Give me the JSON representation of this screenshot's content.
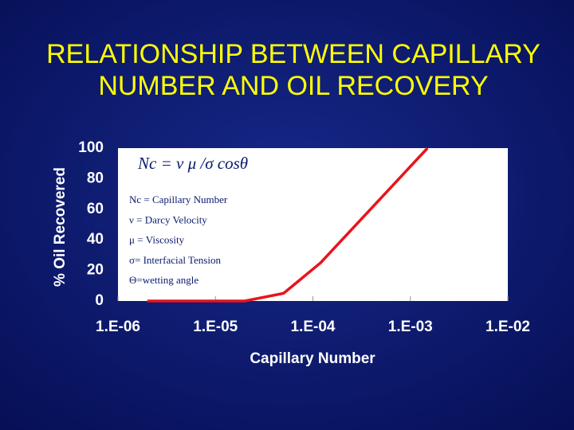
{
  "chart_data": {
    "type": "line",
    "title_lines": [
      "RELATIONSHIP BETWEEN CAPILLARY",
      "NUMBER AND OIL RECOVERY"
    ],
    "x_label": "Capillary Number",
    "y_label": "% Oil Recovered",
    "x": [
      2e-06,
      2e-05,
      5e-05,
      0.00012,
      0.0015
    ],
    "values": [
      0,
      0,
      5,
      25,
      100
    ],
    "color": "#e8141c",
    "x_log": true,
    "xlim": [
      1e-06,
      0.01
    ],
    "xticks": [
      {
        "value": 1e-06,
        "label": "1.E-06"
      },
      {
        "value": 1e-05,
        "label": "1.E-05"
      },
      {
        "value": 0.0001,
        "label": "1.E-04"
      },
      {
        "value": 0.001,
        "label": "1.E-03"
      },
      {
        "value": 0.01,
        "label": "1.E-02"
      }
    ],
    "ylim": [
      0,
      100
    ],
    "yticks": [
      0,
      20,
      40,
      60,
      80,
      100
    ],
    "grid": false,
    "formula": "Nc = ν μ /σ cosθ",
    "annotations": [
      "Nc = Capillary Number",
      "ν  = Darcy Velocity",
      "μ = Viscosity",
      "σ= Interfacial Tension",
      "Θ=wetting angle"
    ]
  }
}
